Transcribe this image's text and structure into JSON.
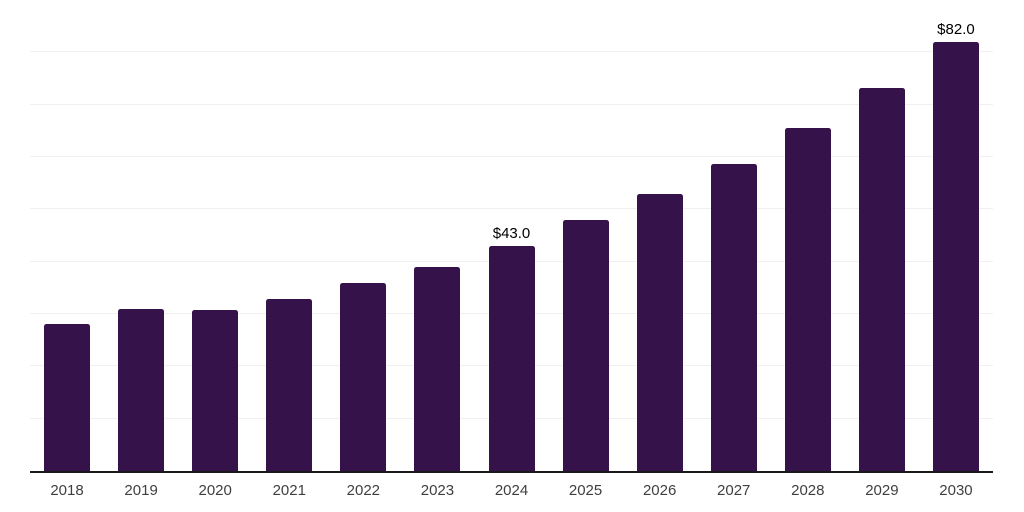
{
  "chart_data": {
    "type": "bar",
    "title": "",
    "xlabel": "",
    "ylabel": "",
    "categories": [
      "2018",
      "2019",
      "2020",
      "2021",
      "2022",
      "2023",
      "2024",
      "2025",
      "2026",
      "2027",
      "2028",
      "2029",
      "2030"
    ],
    "values": [
      28.0,
      31.0,
      30.7,
      32.8,
      36.0,
      39.0,
      43.0,
      47.9,
      52.9,
      58.6,
      65.5,
      73.1,
      82.0
    ],
    "data_labels": {
      "2024": "$43.0",
      "2030": "$82.0"
    },
    "ylim": [
      0,
      90
    ],
    "grid_step": 10,
    "grid": true,
    "legend": false,
    "colors": {
      "bar": "#35124A",
      "grid_line": "#F0F0F0",
      "axis_line": "#1A1A1A",
      "tick_label": "#3F3F3F",
      "data_label": "#000000",
      "background": "#FFFFFF"
    }
  }
}
